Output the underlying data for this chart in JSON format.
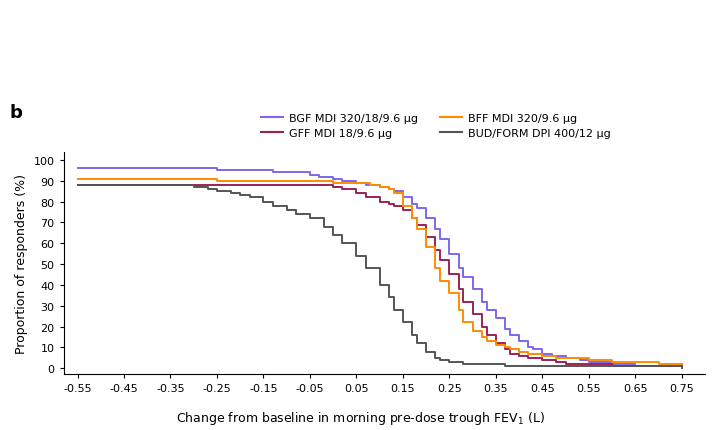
{
  "panel_label": "b",
  "ylabel": "Proportion of responders (%)",
  "xlabel_main": "Change from baseline in morning pre-dose trough FEV",
  "xlabel_sub": "1",
  "xlabel_end": " (L)",
  "xlim": [
    -0.58,
    0.8
  ],
  "ylim": [
    -3,
    104
  ],
  "xticks": [
    -0.55,
    -0.45,
    -0.35,
    -0.25,
    -0.15,
    -0.05,
    0.05,
    0.15,
    0.25,
    0.35,
    0.45,
    0.55,
    0.65,
    0.75
  ],
  "yticks": [
    0,
    10,
    20,
    30,
    40,
    50,
    60,
    70,
    80,
    90,
    100
  ],
  "background_color": "#ffffff",
  "legend": [
    {
      "label": "BGF MDI 320/18/9.6 μg",
      "color": "#7B68EE"
    },
    {
      "label": "GFF MDI 18/9.6 μg",
      "color": "#9B2257"
    },
    {
      "label": "BFF MDI 320/9.6 μg",
      "color": "#FF8C00"
    },
    {
      "label": "BUD/FORM DPI 400/12 μg",
      "color": "#555555"
    }
  ],
  "lines": [
    {
      "label": "BGF MDI 320/18/9.6 μg",
      "color": "#7B68EE",
      "linewidth": 1.4,
      "x": [
        -0.55,
        -0.3,
        -0.25,
        -0.23,
        -0.2,
        -0.18,
        -0.15,
        -0.13,
        -0.1,
        -0.08,
        -0.05,
        -0.03,
        0.0,
        0.02,
        0.05,
        0.07,
        0.1,
        0.12,
        0.13,
        0.15,
        0.17,
        0.18,
        0.2,
        0.22,
        0.23,
        0.25,
        0.27,
        0.28,
        0.3,
        0.32,
        0.33,
        0.35,
        0.37,
        0.38,
        0.4,
        0.42,
        0.43,
        0.45,
        0.47,
        0.5,
        0.53,
        0.55,
        0.6,
        0.65,
        0.7,
        0.75
      ],
      "y": [
        96,
        96,
        95,
        95,
        95,
        95,
        95,
        94,
        94,
        94,
        93,
        92,
        91,
        90,
        89,
        88,
        87,
        86,
        85,
        82,
        79,
        77,
        72,
        67,
        62,
        55,
        48,
        44,
        38,
        32,
        28,
        24,
        19,
        16,
        13,
        10,
        9,
        7,
        6,
        5,
        4,
        3,
        2,
        1,
        1,
        1
      ]
    },
    {
      "label": "GFF MDI 18/9.6 μg",
      "color": "#9B2257",
      "linewidth": 1.4,
      "x": [
        -0.55,
        -0.25,
        -0.22,
        -0.2,
        -0.18,
        -0.15,
        -0.13,
        -0.1,
        -0.08,
        -0.05,
        -0.02,
        0.0,
        0.02,
        0.05,
        0.07,
        0.1,
        0.12,
        0.13,
        0.15,
        0.17,
        0.18,
        0.2,
        0.22,
        0.23,
        0.25,
        0.27,
        0.28,
        0.3,
        0.32,
        0.33,
        0.35,
        0.37,
        0.38,
        0.4,
        0.42,
        0.45,
        0.48,
        0.5,
        0.55,
        0.6,
        0.65,
        0.7,
        0.75
      ],
      "y": [
        88,
        88,
        88,
        88,
        88,
        88,
        88,
        88,
        88,
        88,
        88,
        87,
        86,
        84,
        82,
        80,
        79,
        78,
        76,
        72,
        69,
        63,
        57,
        52,
        45,
        38,
        32,
        26,
        20,
        16,
        12,
        9,
        7,
        6,
        5,
        4,
        3,
        2,
        2,
        1,
        1,
        1,
        1
      ]
    },
    {
      "label": "BFF MDI 320/9.6 μg",
      "color": "#FF8C00",
      "linewidth": 1.4,
      "x": [
        -0.55,
        -0.3,
        -0.25,
        -0.22,
        -0.2,
        -0.18,
        -0.15,
        -0.13,
        -0.1,
        -0.08,
        -0.05,
        0.0,
        0.05,
        0.08,
        0.1,
        0.12,
        0.13,
        0.15,
        0.17,
        0.18,
        0.2,
        0.22,
        0.23,
        0.25,
        0.27,
        0.28,
        0.3,
        0.32,
        0.33,
        0.35,
        0.37,
        0.38,
        0.4,
        0.42,
        0.45,
        0.48,
        0.5,
        0.55,
        0.6,
        0.65,
        0.7,
        0.75
      ],
      "y": [
        91,
        91,
        90,
        90,
        90,
        90,
        90,
        90,
        90,
        90,
        90,
        89,
        89,
        88,
        87,
        86,
        84,
        78,
        72,
        67,
        58,
        48,
        42,
        36,
        28,
        22,
        18,
        15,
        13,
        11,
        10,
        9,
        8,
        7,
        6,
        5,
        5,
        4,
        3,
        3,
        2,
        2
      ]
    },
    {
      "label": "BUD/FORM DPI 400/12 μg",
      "color": "#555555",
      "linewidth": 1.4,
      "x": [
        -0.55,
        -0.35,
        -0.3,
        -0.27,
        -0.25,
        -0.22,
        -0.2,
        -0.18,
        -0.15,
        -0.13,
        -0.1,
        -0.08,
        -0.05,
        -0.02,
        0.0,
        0.02,
        0.05,
        0.07,
        0.1,
        0.12,
        0.13,
        0.15,
        0.17,
        0.18,
        0.2,
        0.22,
        0.23,
        0.25,
        0.27,
        0.28,
        0.3,
        0.32,
        0.33,
        0.35,
        0.37,
        0.38,
        0.4,
        0.75
      ],
      "y": [
        88,
        88,
        87,
        86,
        85,
        84,
        83,
        82,
        80,
        78,
        76,
        74,
        72,
        68,
        64,
        60,
        54,
        48,
        40,
        34,
        28,
        22,
        16,
        12,
        8,
        5,
        4,
        3,
        3,
        2,
        2,
        2,
        2,
        2,
        1,
        1,
        1,
        0
      ]
    }
  ]
}
